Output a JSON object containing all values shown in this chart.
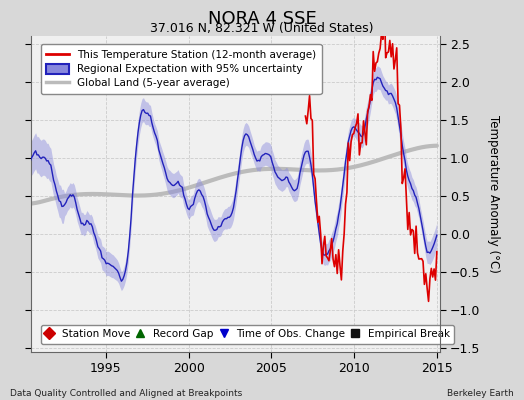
{
  "title": "NORA 4 SSE",
  "subtitle": "37.016 N, 82.321 W (United States)",
  "ylabel": "Temperature Anomaly (°C)",
  "footer_left": "Data Quality Controlled and Aligned at Breakpoints",
  "footer_right": "Berkeley Earth",
  "xlim": [
    1990.5,
    2015.2
  ],
  "ylim": [
    -1.55,
    2.6
  ],
  "yticks_right": [
    -1.5,
    -1.0,
    -0.5,
    0.0,
    0.5,
    1.0,
    1.5,
    2.0,
    2.5
  ],
  "xticks": [
    1995,
    2000,
    2005,
    2010,
    2015
  ],
  "bg_color": "#d8d8d8",
  "plot_bg_color": "#f0f0f0",
  "station_color": "#dd0000",
  "regional_color": "#2222bb",
  "regional_fill_color": "#8888dd",
  "global_color": "#bbbbbb",
  "legend_items": [
    "This Temperature Station (12-month average)",
    "Regional Expectation with 95% uncertainty",
    "Global Land (5-year average)"
  ],
  "marker_legend": [
    {
      "label": "Station Move",
      "color": "#cc0000",
      "marker": "D"
    },
    {
      "label": "Record Gap",
      "color": "#006600",
      "marker": "^"
    },
    {
      "label": "Time of Obs. Change",
      "color": "#0000cc",
      "marker": "v"
    },
    {
      "label": "Empirical Break",
      "color": "#111111",
      "marker": "s"
    }
  ]
}
